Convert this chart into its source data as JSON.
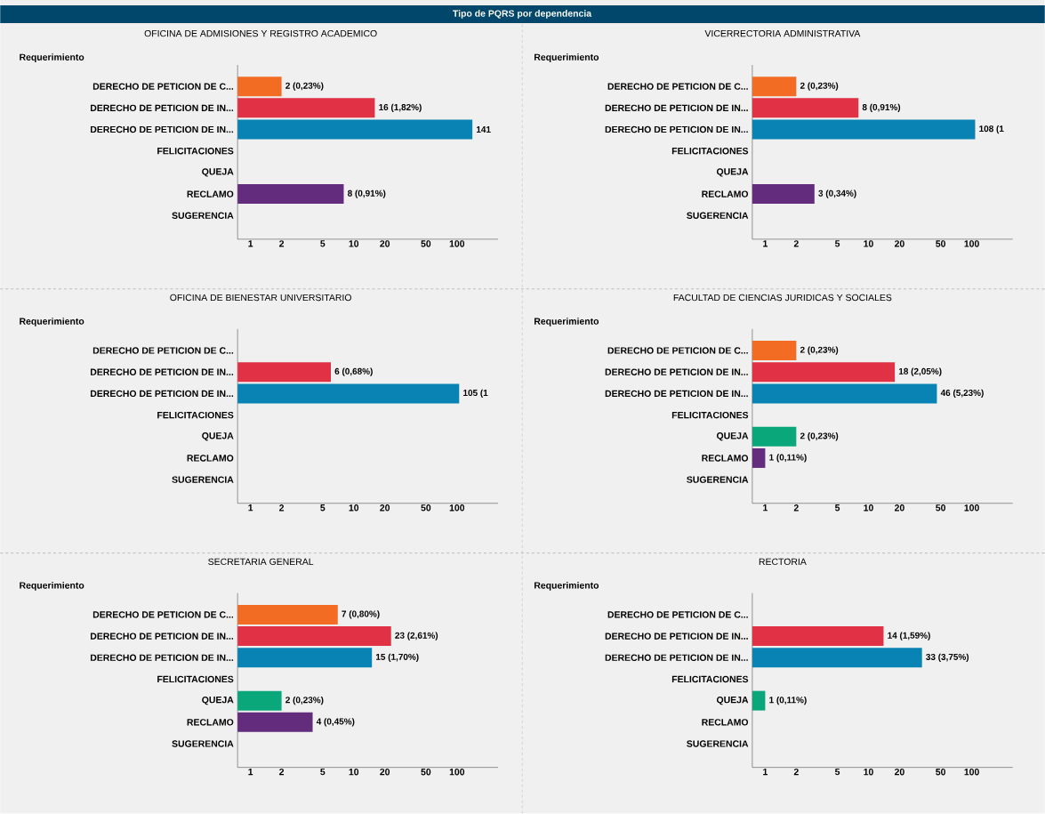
{
  "chart_data": [
    {
      "type": "bar",
      "orientation": "horizontal",
      "log": "x",
      "title": "OFICINA DE ADMISIONES Y REGISTRO ACADEMICO",
      "ylabel": "Requerimiento",
      "annotations": [
        "Tipo de PQRS por dependencia"
      ],
      "categories": [
        "DERECHO DE PETICION DE C...",
        "DERECHO DE PETICION DE IN...",
        "DERECHO DE PETICION DE IN...",
        "FELICITACIONES",
        "QUEJA",
        "RECLAMO",
        "SUGERENCIA"
      ],
      "values": [
        2,
        16,
        141,
        null,
        null,
        8,
        null
      ],
      "colors": [
        "#f26c24",
        "#e03244",
        "#0883b4",
        null,
        null,
        "#642c7c",
        null
      ],
      "value_labels": [
        "2 (0,23%)",
        "16 (1,82%)",
        "141",
        null,
        null,
        "8 (0,91%)",
        null
      ],
      "xlim": [
        0.75,
        250
      ],
      "xticks": [
        1,
        2,
        5,
        10,
        20,
        50,
        100
      ]
    },
    {
      "type": "bar",
      "orientation": "horizontal",
      "log": "x",
      "title": "VICERRECTORIA ADMINISTRATIVA",
      "ylabel": "Requerimiento",
      "categories": [
        "DERECHO DE PETICION DE C...",
        "DERECHO DE PETICION DE IN...",
        "DERECHO DE PETICION DE IN...",
        "FELICITACIONES",
        "QUEJA",
        "RECLAMO",
        "SUGERENCIA"
      ],
      "values": [
        2,
        8,
        108,
        null,
        null,
        3,
        null
      ],
      "colors": [
        "#f26c24",
        "#e03244",
        "#0883b4",
        null,
        null,
        "#642c7c",
        null
      ],
      "value_labels": [
        "2 (0,23%)",
        "8 (0,91%)",
        "108 (1",
        null,
        null,
        "3 (0,34%)",
        null
      ],
      "xlim": [
        0.75,
        250
      ],
      "xticks": [
        1,
        2,
        5,
        10,
        20,
        50,
        100
      ]
    },
    {
      "type": "bar",
      "orientation": "horizontal",
      "log": "x",
      "title": "OFICINA DE BIENESTAR UNIVERSITARIO",
      "ylabel": "Requerimiento",
      "categories": [
        "DERECHO DE PETICION DE C...",
        "DERECHO DE PETICION DE IN...",
        "DERECHO DE PETICION DE IN...",
        "FELICITACIONES",
        "QUEJA",
        "RECLAMO",
        "SUGERENCIA"
      ],
      "values": [
        null,
        6,
        105,
        null,
        null,
        null,
        null
      ],
      "colors": [
        null,
        "#e03244",
        "#0883b4",
        null,
        null,
        null,
        null
      ],
      "value_labels": [
        null,
        "6 (0,68%)",
        "105 (1",
        null,
        null,
        null,
        null
      ],
      "xlim": [
        0.75,
        250
      ],
      "xticks": [
        1,
        2,
        5,
        10,
        20,
        50,
        100
      ]
    },
    {
      "type": "bar",
      "orientation": "horizontal",
      "log": "x",
      "title": "FACULTAD DE CIENCIAS JURIDICAS Y SOCIALES",
      "ylabel": "Requerimiento",
      "categories": [
        "DERECHO DE PETICION DE C...",
        "DERECHO DE PETICION DE IN...",
        "DERECHO DE PETICION DE IN...",
        "FELICITACIONES",
        "QUEJA",
        "RECLAMO",
        "SUGERENCIA"
      ],
      "values": [
        2,
        18,
        46,
        null,
        2,
        1,
        null
      ],
      "colors": [
        "#f26c24",
        "#e03244",
        "#0883b4",
        null,
        "#0aa77a",
        "#642c7c",
        null
      ],
      "value_labels": [
        "2 (0,23%)",
        "18 (2,05%)",
        "46 (5,23%)",
        null,
        "2 (0,23%)",
        "1 (0,11%)",
        null
      ],
      "xlim": [
        0.75,
        250
      ],
      "xticks": [
        1,
        2,
        5,
        10,
        20,
        50,
        100
      ]
    },
    {
      "type": "bar",
      "orientation": "horizontal",
      "log": "x",
      "title": "SECRETARIA GENERAL",
      "ylabel": "Requerimiento",
      "categories": [
        "DERECHO DE PETICION DE C...",
        "DERECHO DE PETICION DE IN...",
        "DERECHO DE PETICION DE IN...",
        "FELICITACIONES",
        "QUEJA",
        "RECLAMO",
        "SUGERENCIA"
      ],
      "values": [
        7,
        23,
        15,
        null,
        2,
        4,
        null
      ],
      "colors": [
        "#f26c24",
        "#e03244",
        "#0883b4",
        null,
        "#0aa77a",
        "#642c7c",
        null
      ],
      "value_labels": [
        "7 (0,80%)",
        "23 (2,61%)",
        "15 (1,70%)",
        null,
        "2 (0,23%)",
        "4 (0,45%)",
        null
      ],
      "xlim": [
        0.75,
        250
      ],
      "xticks": [
        1,
        2,
        5,
        10,
        20,
        50,
        100
      ]
    },
    {
      "type": "bar",
      "orientation": "horizontal",
      "log": "x",
      "title": "RECTORIA",
      "ylabel": "Requerimiento",
      "categories": [
        "DERECHO DE PETICION DE C...",
        "DERECHO DE PETICION DE IN...",
        "DERECHO DE PETICION DE IN...",
        "FELICITACIONES",
        "QUEJA",
        "RECLAMO",
        "SUGERENCIA"
      ],
      "values": [
        null,
        14,
        33,
        null,
        1,
        null,
        null
      ],
      "colors": [
        null,
        "#e03244",
        "#0883b4",
        null,
        "#0aa77a",
        null,
        null
      ],
      "value_labels": [
        null,
        "14 (1,59%)",
        "33 (3,75%)",
        null,
        "1 (0,11%)",
        null,
        null
      ],
      "xlim": [
        0.75,
        250
      ],
      "xticks": [
        1,
        2,
        5,
        10,
        20,
        50,
        100
      ]
    }
  ]
}
